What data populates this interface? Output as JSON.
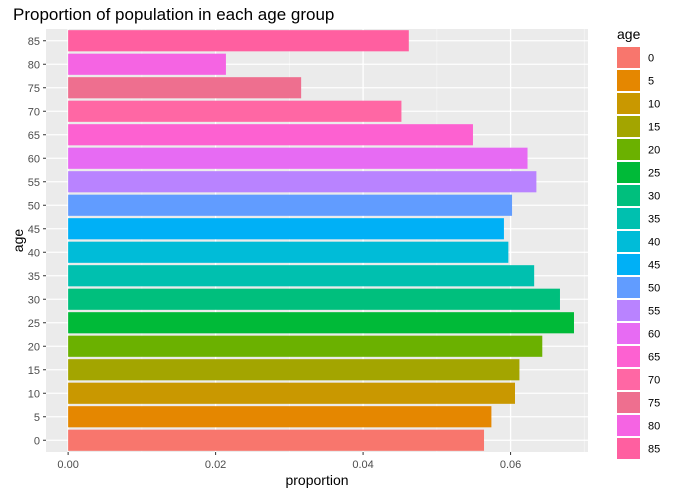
{
  "chart_data": {
    "type": "bar",
    "orientation": "horizontal",
    "title": "Proportion of population in each age group",
    "xlabel": "proportion",
    "ylabel": "age",
    "xlim": [
      -0.003,
      0.0705
    ],
    "xticks": [
      0.0,
      0.02,
      0.04,
      0.06
    ],
    "xtick_labels": [
      "0.00",
      "0.02",
      "0.04",
      "0.06"
    ],
    "grid": true,
    "legend": {
      "title": "age",
      "position": "right"
    },
    "categories": [
      "0",
      "5",
      "10",
      "15",
      "20",
      "25",
      "30",
      "35",
      "40",
      "45",
      "50",
      "55",
      "60",
      "65",
      "70",
      "75",
      "80",
      "85"
    ],
    "values": [
      0.0564,
      0.0574,
      0.0606,
      0.0612,
      0.0643,
      0.0686,
      0.0667,
      0.0632,
      0.0597,
      0.0591,
      0.0602,
      0.0635,
      0.0623,
      0.0549,
      0.0452,
      0.0316,
      0.0214,
      0.0462
    ],
    "colors": [
      "#F8766D",
      "#E58700",
      "#C99800",
      "#A3A500",
      "#6BB100",
      "#00BA38",
      "#00BF7D",
      "#00C0AF",
      "#00BCD8",
      "#00B0F6",
      "#619CFF",
      "#B983FF",
      "#E76BF3",
      "#FD61D1",
      "#FF67A4",
      "#EE6F8F",
      "#F564E3",
      "#FF5FA0"
    ]
  }
}
